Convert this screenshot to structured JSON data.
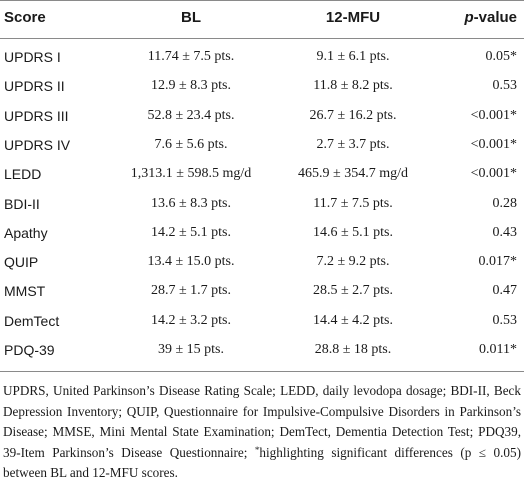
{
  "header": {
    "score": "Score",
    "bl": "BL",
    "mfu": "12-MFU",
    "p_italic": "p",
    "p_rest": "-value"
  },
  "rows": [
    {
      "score": "UPDRS I",
      "bl": "11.74 ± 7.5 pts.",
      "mfu": "9.1 ± 6.1 pts.",
      "p": "0.05*"
    },
    {
      "score": "UPDRS II",
      "bl": "12.9 ± 8.3 pts.",
      "mfu": "11.8 ± 8.2 pts.",
      "p": "0.53"
    },
    {
      "score": "UPDRS III",
      "bl": "52.8 ± 23.4 pts.",
      "mfu": "26.7 ± 16.2 pts.",
      "p": "<0.001*"
    },
    {
      "score": "UPDRS IV",
      "bl": "7.6 ± 5.6 pts.",
      "mfu": "2.7 ± 3.7 pts.",
      "p": "<0.001*"
    },
    {
      "score": "LEDD",
      "bl": "1,313.1 ± 598.5 mg/d",
      "mfu": "465.9 ± 354.7 mg/d",
      "p": "<0.001*"
    },
    {
      "score": "BDI-II",
      "bl": "13.6 ± 8.3 pts.",
      "mfu": "11.7 ± 7.5 pts.",
      "p": "0.28"
    },
    {
      "score": "Apathy",
      "bl": "14.2 ± 5.1 pts.",
      "mfu": "14.6 ± 5.1 pts.",
      "p": "0.43"
    },
    {
      "score": "QUIP",
      "bl": "13.4 ± 15.0 pts.",
      "mfu": "7.2 ± 9.2 pts.",
      "p": "0.017*"
    },
    {
      "score": "MMST",
      "bl": "28.7 ± 1.7 pts.",
      "mfu": "28.5 ± 2.7 pts.",
      "p": "0.47"
    },
    {
      "score": "DemTect",
      "bl": "14.2 ± 3.2 pts.",
      "mfu": "14.4 ± 4.2 pts.",
      "p": "0.53"
    },
    {
      "score": "PDQ-39",
      "bl": "39 ± 15 pts.",
      "mfu": "28.8 ± 18 pts.",
      "p": "0.011*"
    }
  ],
  "footnote": {
    "text_before": "UPDRS, United Parkinson’s Disease Rating Scale; LEDD, daily levodopa dosage; BDI-II, Beck Depression Inventory; QUIP, Questionnaire for Impulsive-Compulsive Disorders in Parkinson’s Disease; MMSE, Mini Mental State Examination; DemTect, Dementia Detection Test; PDQ39, 39-Item Parkinson’s Disease Questionnaire; ",
    "sup": "*",
    "text_after": "highlighting significant differences (p ≤ 0.05) between BL and 12-MFU scores."
  }
}
